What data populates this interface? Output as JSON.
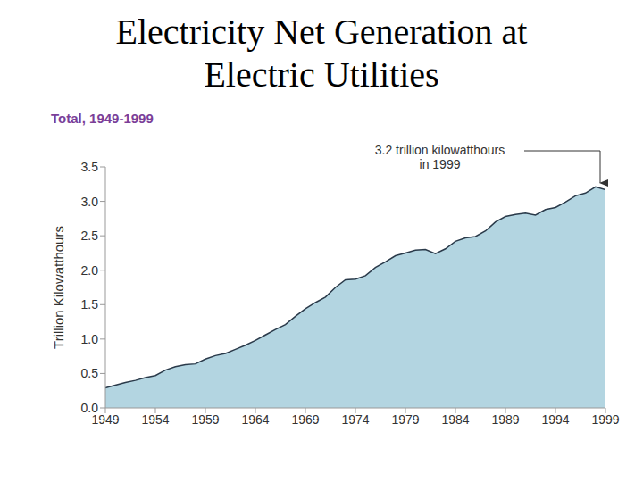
{
  "chart_data": {
    "type": "area",
    "title": "Electricity Net Generation at Electric Utilities",
    "subtitle": "Total, 1949-1999",
    "y_label": "Trillion Kilowatthours",
    "annotation": [
      "3.2 trillion kilowatthours",
      "in 1999"
    ],
    "x": [
      1949,
      1950,
      1951,
      1952,
      1953,
      1954,
      1955,
      1956,
      1957,
      1958,
      1959,
      1960,
      1961,
      1962,
      1963,
      1964,
      1965,
      1966,
      1967,
      1968,
      1969,
      1970,
      1971,
      1972,
      1973,
      1974,
      1975,
      1976,
      1977,
      1978,
      1979,
      1980,
      1981,
      1982,
      1983,
      1984,
      1985,
      1986,
      1987,
      1988,
      1989,
      1990,
      1991,
      1992,
      1993,
      1994,
      1995,
      1996,
      1997,
      1998,
      1999
    ],
    "values": [
      0.29,
      0.33,
      0.37,
      0.4,
      0.44,
      0.47,
      0.55,
      0.6,
      0.63,
      0.64,
      0.71,
      0.76,
      0.79,
      0.85,
      0.91,
      0.98,
      1.06,
      1.14,
      1.21,
      1.33,
      1.44,
      1.53,
      1.61,
      1.75,
      1.86,
      1.87,
      1.92,
      2.04,
      2.12,
      2.21,
      2.25,
      2.29,
      2.3,
      2.24,
      2.31,
      2.42,
      2.47,
      2.49,
      2.57,
      2.7,
      2.78,
      2.81,
      2.83,
      2.8,
      2.88,
      2.91,
      2.99,
      3.08,
      3.12,
      3.21,
      3.17
    ],
    "color": "#b3d5e1",
    "xlim": [
      1949,
      1999
    ],
    "xticks": [
      1949,
      1954,
      1959,
      1964,
      1969,
      1974,
      1979,
      1984,
      1989,
      1994,
      1999
    ],
    "ylim": [
      0,
      3.5
    ],
    "yticks": [
      {
        "value": 0,
        "label": "0.0"
      },
      0.5,
      {
        "value": 1,
        "label": "1.0"
      },
      1.5,
      {
        "value": 2,
        "label": "2.0"
      },
      2.5,
      {
        "value": 3,
        "label": "3.0"
      },
      3.5
    ],
    "grid": false
  }
}
